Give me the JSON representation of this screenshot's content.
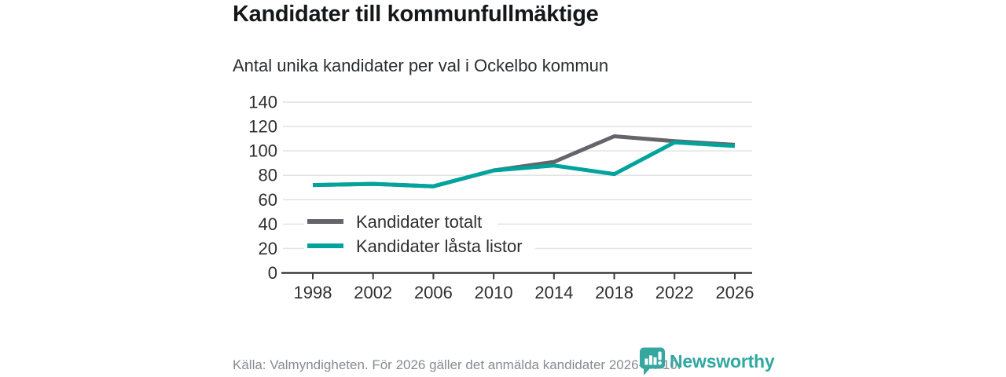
{
  "title": "Kandidater till kommunfullmäktige",
  "subtitle": "Antal unika kandidater per val i Ockelbo kommun",
  "source_note": "Källa: Valmyndigheten. För 2026 gäller det anmälda kandidater 2026-04-10.",
  "brand": {
    "name": "Newsworthy",
    "icon": "newsworthy-speech-bubble-bar-chart-icon",
    "color": "#2fa8a1"
  },
  "colors": {
    "series_total_gray": "#64646a",
    "series_locked_teal": "#00a49c",
    "gridline": "#e2e2e2",
    "axis": "#3a3a3a",
    "tick_text": "#2f2f2f",
    "title_text": "#15181b",
    "subtitle_text": "#2b2e31",
    "source_text": "#888b92"
  },
  "chart_data": {
    "type": "line",
    "title": "Kandidater till kommunfullmäktige",
    "subtitle": "Antal unika kandidater per val i Ockelbo kommun",
    "xlabel": "",
    "ylabel": "",
    "categories": [
      "1998",
      "2002",
      "2006",
      "2010",
      "2014",
      "2018",
      "2022",
      "2026"
    ],
    "series": [
      {
        "name": "Kandidater totalt",
        "color": "#64646a",
        "values": [
          72,
          73,
          71,
          84,
          91,
          112,
          108,
          105
        ]
      },
      {
        "name": "Kandidater låsta listor",
        "color": "#00a49c",
        "values": [
          72,
          73,
          71,
          84,
          88,
          81,
          107,
          104
        ]
      }
    ],
    "ylim": [
      0,
      140
    ],
    "yticks": [
      0,
      20,
      40,
      60,
      80,
      100,
      120,
      140
    ],
    "grid": true,
    "legend_position": "inside-bottom-left"
  }
}
